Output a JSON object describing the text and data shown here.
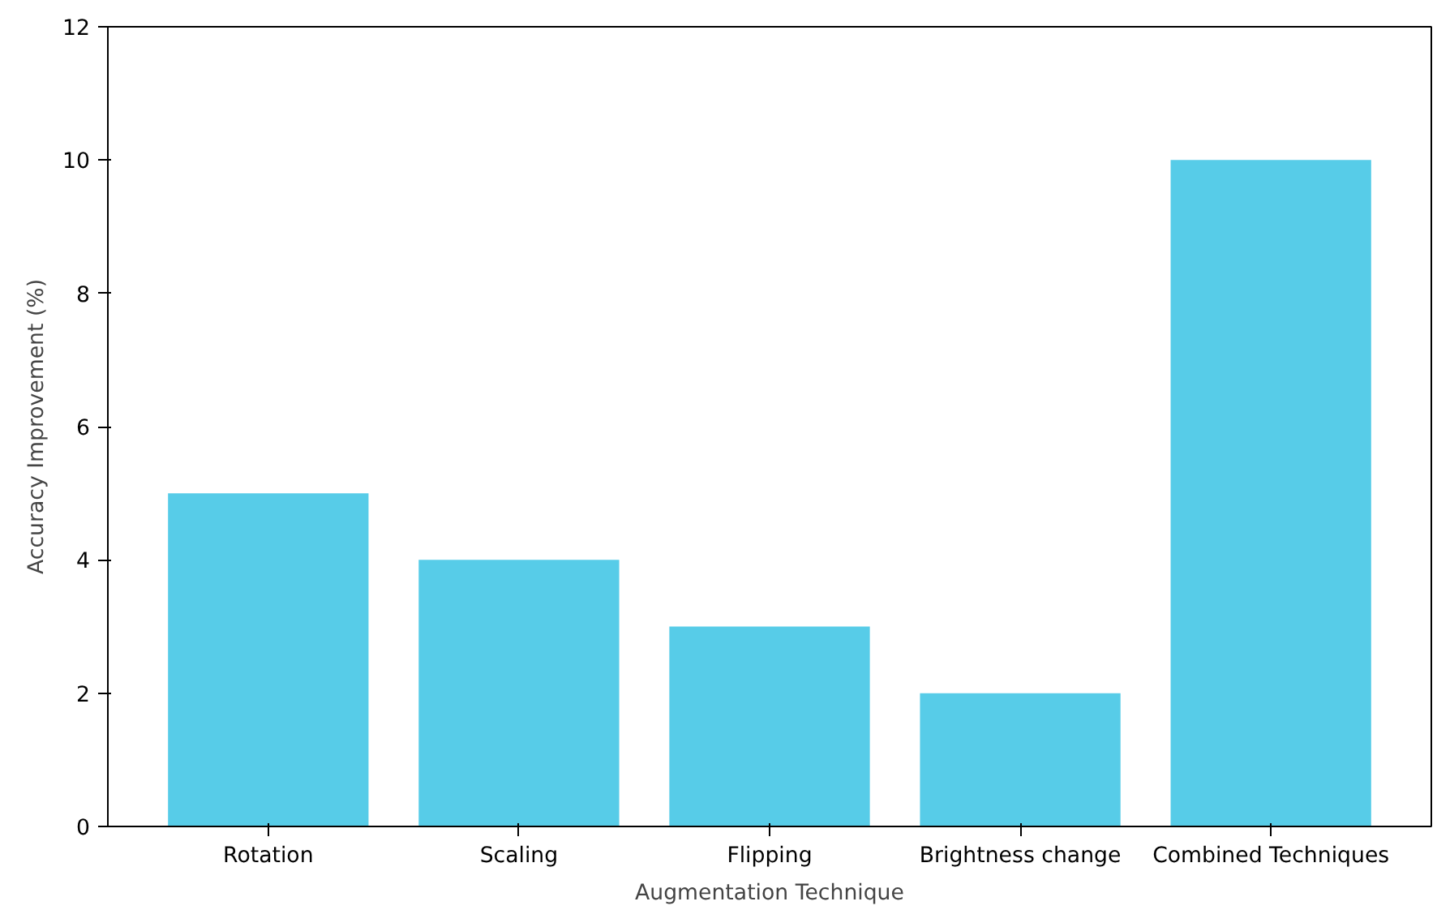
{
  "chart_data": {
    "type": "bar",
    "xlabel": "Augmentation Technique",
    "ylabel": "Accuracy Improvement (%)",
    "categories": [
      "Rotation",
      "Scaling",
      "Flipping",
      "Brightness change",
      "Combined Techniques"
    ],
    "values": [
      5,
      4,
      3,
      2,
      10
    ],
    "color": "#57cce8",
    "ylim": [
      0,
      12
    ],
    "yticks": [
      0,
      2,
      4,
      6,
      8,
      10,
      12
    ],
    "grid": false
  }
}
